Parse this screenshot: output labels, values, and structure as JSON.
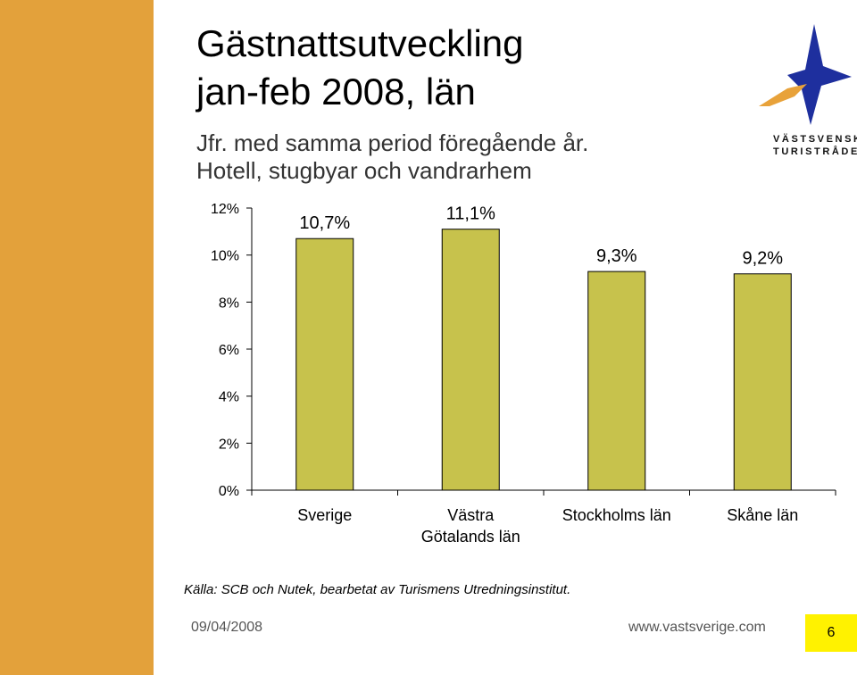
{
  "colors": {
    "sidebar": "#E3A13B",
    "bar": "#C7C24C",
    "page_box": "#FFF200",
    "logo_blue": "#1E2F9E",
    "logo_orange": "#E8A23A"
  },
  "slide": {
    "title_line1": "Gästnattsutveckling",
    "title_line2": "jan-feb 2008, län",
    "subtitle_line1": "Jfr. med samma period föregående år.",
    "subtitle_line2": "Hotell, stugbyar och vandrarhem",
    "logo_line1": "VÄSTSVENSKA",
    "logo_line2": "TURISTRÅDET",
    "source": "Källa: SCB och Nutek, bearbetat av Turismens Utredningsinstitut.",
    "date": "09/04/2008",
    "url": "www.vastsverige.com",
    "page_number": "6"
  },
  "chart_data": {
    "type": "bar",
    "categories": [
      [
        "Sverige"
      ],
      [
        "Västra",
        "Götalands län"
      ],
      [
        "Stockholms län"
      ],
      [
        "Skåne län"
      ]
    ],
    "values": [
      10.7,
      11.1,
      9.3,
      9.2
    ],
    "data_labels": [
      "10,7%",
      "11,1%",
      "9,3%",
      "9,2%"
    ],
    "y_ticks": [
      "0%",
      "2%",
      "4%",
      "6%",
      "8%",
      "10%",
      "12%"
    ],
    "ylim": [
      0,
      12
    ],
    "grid": false
  }
}
